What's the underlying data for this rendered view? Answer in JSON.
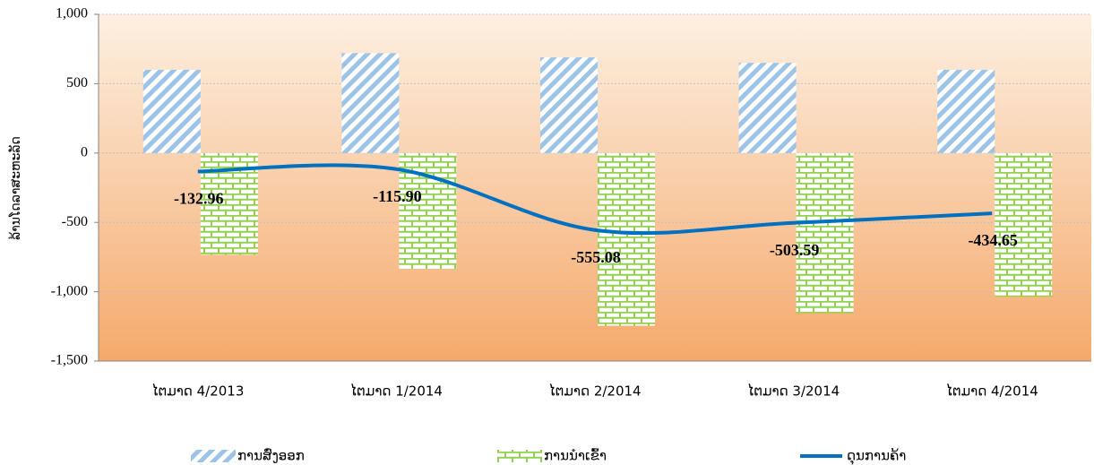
{
  "chart_data": {
    "type": "bar_line",
    "y_axis_label": "ລ້ານໂດລາສະຫະລັດ",
    "categories": [
      "ໄຕມາດ 4/2013",
      "ໄຕມາດ 1/2014",
      "ໄຕມາດ 2/2014",
      "ໄຕມາດ 3/2014",
      "ໄຕມາດ 4/2014"
    ],
    "series": [
      {
        "name": "ການສົ່ງອອກ",
        "type": "bar",
        "color": "#9dc3e6",
        "values": [
          600,
          720,
          690,
          650,
          600
        ]
      },
      {
        "name": "ການນຳເຂົ້າ",
        "type": "bar",
        "color": "#92d050",
        "values": [
          -733,
          -836,
          -1245,
          -1154,
          -1035
        ]
      },
      {
        "name": "ດຸນການຄ້າ",
        "type": "line",
        "color": "#0070c0",
        "values": [
          -132.96,
          -115.9,
          -555.08,
          -503.59,
          -434.65
        ],
        "value_labels": [
          "-132.96",
          "-115.90",
          "-555.08",
          "-503.59",
          "-434.65"
        ]
      }
    ],
    "ylim": [
      -1500,
      1000
    ],
    "yticks": [
      {
        "value": -1500,
        "label": "-1,500"
      },
      {
        "value": -1000,
        "label": "-1,000"
      },
      -500,
      0,
      500,
      {
        "value": 1000,
        "label": "1,000"
      }
    ],
    "grid": true,
    "legend": "bottom"
  }
}
